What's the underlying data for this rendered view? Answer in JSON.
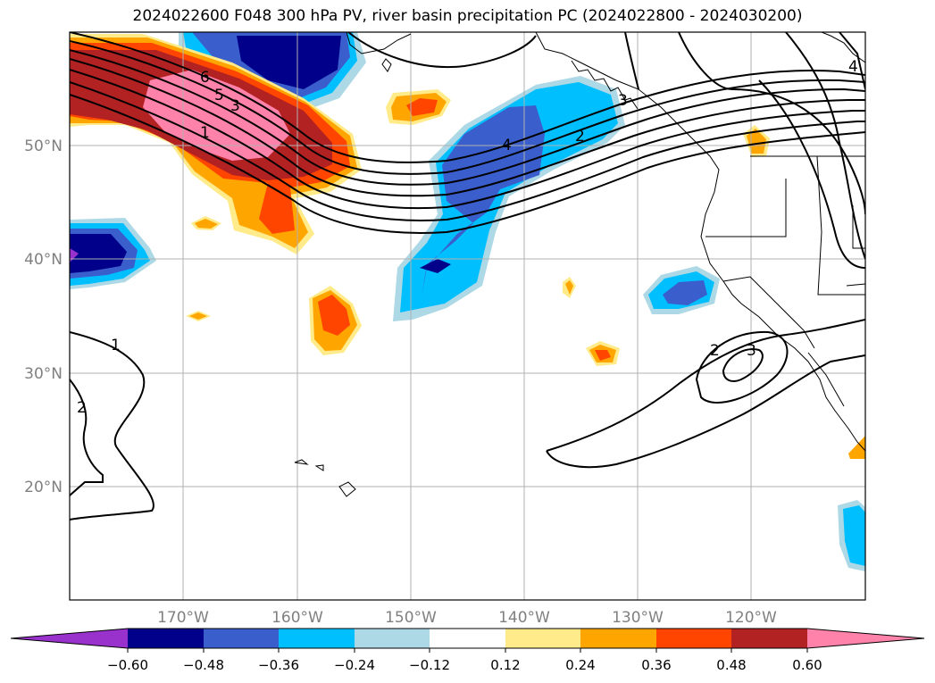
{
  "title": "2024022600 F048 300 hPa PV, river basin precipitation PC (2024022800 - 2024030200)",
  "map": {
    "lon_range": [
      -180,
      -110
    ],
    "lat_range": [
      10,
      60
    ],
    "longitude_labels": [
      "170°W",
      "160°W",
      "150°W",
      "140°W",
      "130°W",
      "120°W"
    ],
    "latitude_labels": [
      "50°N",
      "40°N",
      "30°N",
      "20°N"
    ],
    "gridlines": true
  },
  "contour_labels": [
    "6",
    "5",
    "3",
    "1",
    "4",
    "2",
    "3",
    "1",
    "2",
    "2",
    "3",
    "4"
  ],
  "colorbar": {
    "ticks": [
      "−0.60",
      "−0.48",
      "−0.36",
      "−0.24",
      "−0.12",
      "0.12",
      "0.24",
      "0.36",
      "0.48",
      "0.60"
    ],
    "colors": [
      "#9932cc",
      "#00008b",
      "#3a5fcd",
      "#00bfff",
      "#add8e6",
      "#ffffff",
      "#ffeb8a",
      "#ffa500",
      "#ff4500",
      "#b22222",
      "#ff82ab"
    ]
  }
}
